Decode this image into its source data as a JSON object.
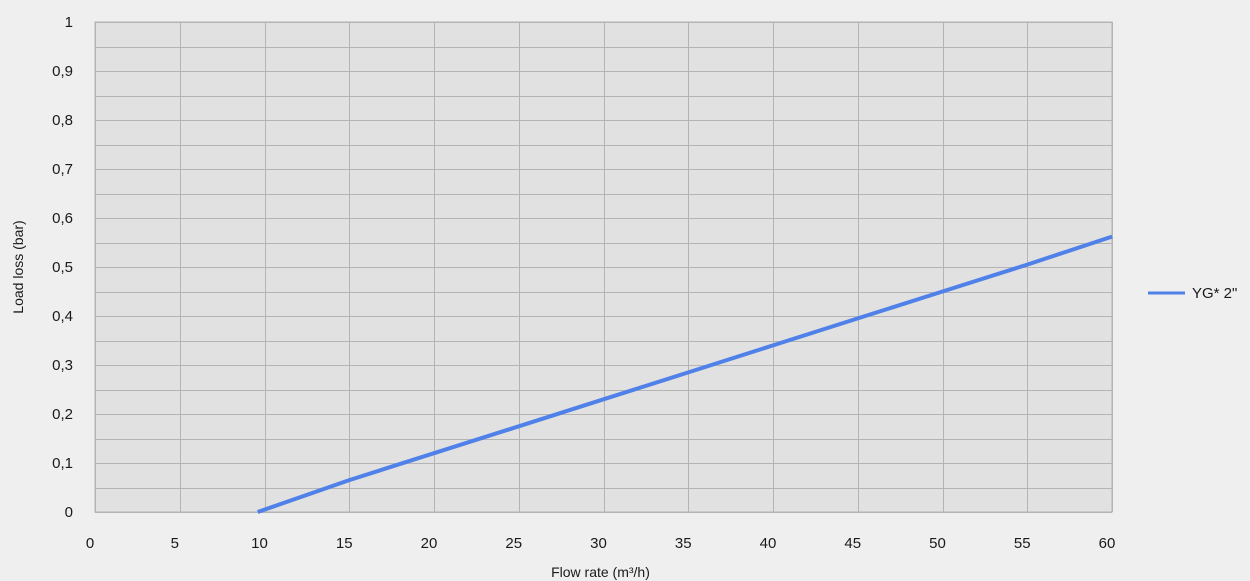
{
  "chart_data": {
    "type": "line",
    "title": "",
    "xlabel": "Flow rate (m³/h)",
    "ylabel": "Load loss (bar)",
    "xlim": [
      0,
      60
    ],
    "ylim": [
      0,
      1
    ],
    "x_ticks": [
      "0",
      "5",
      "10",
      "15",
      "20",
      "25",
      "30",
      "35",
      "40",
      "45",
      "50",
      "55",
      "60"
    ],
    "y_ticks": [
      "0",
      "0,1",
      "0,2",
      "0,3",
      "0,4",
      "0,5",
      "0,6",
      "0,7",
      "0,8",
      "0,9",
      "1"
    ],
    "grid": true,
    "legend_position": "right",
    "series": [
      {
        "name": "YG* 2\"",
        "color": "#4f81e8",
        "x": [
          9.6,
          15,
          20,
          25,
          30,
          35,
          40,
          45,
          50,
          55,
          60
        ],
        "y": [
          0.0,
          0.065,
          0.12,
          0.175,
          0.23,
          0.285,
          0.34,
          0.395,
          0.45,
          0.505,
          0.562
        ]
      }
    ]
  },
  "colors": {
    "background": "#efefef",
    "plot_area": "#e1e1e1",
    "grid": "#b4b4b4",
    "text": "#1a1a1a"
  }
}
